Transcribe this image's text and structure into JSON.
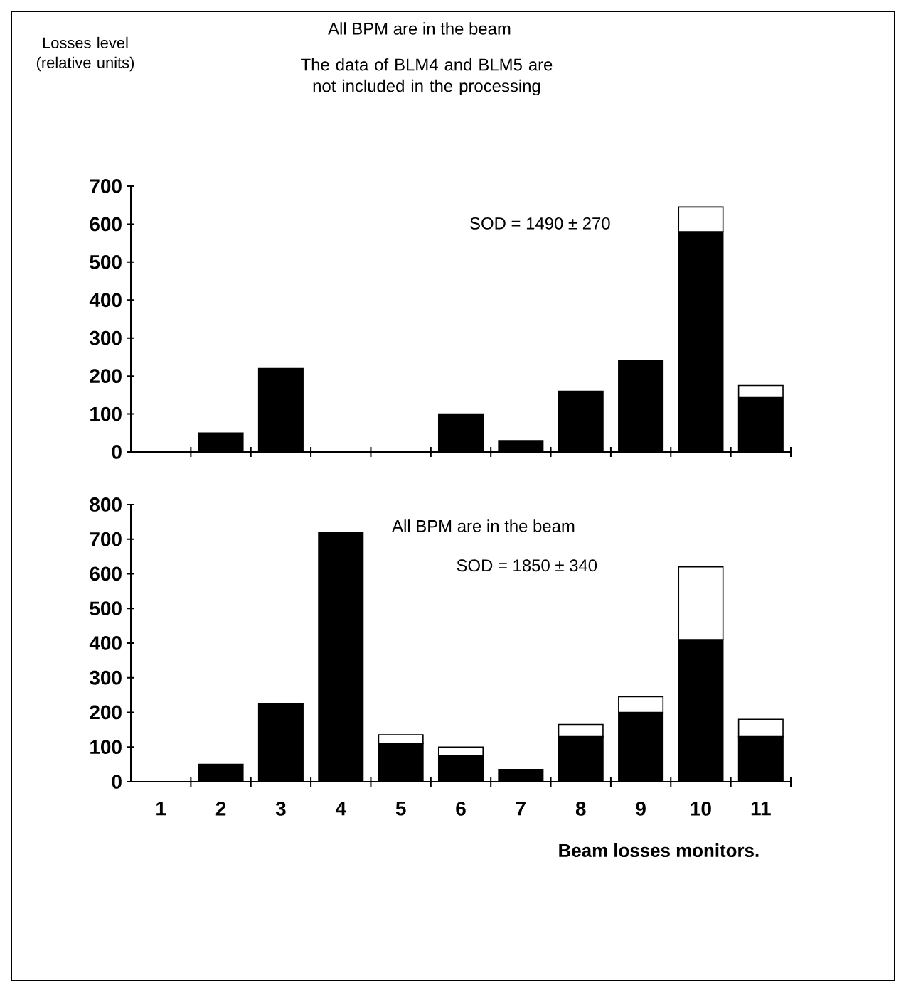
{
  "chart_data": [
    {
      "type": "bar",
      "stacked": true,
      "title": "All BPM are in the beam",
      "subtitle": "The data of BLM4 and BLM5 are not included in the processing",
      "ylabel": "Losses level (relative units)",
      "categories": [
        "1",
        "2",
        "3",
        "4",
        "5",
        "6",
        "7",
        "8",
        "9",
        "10",
        "11"
      ],
      "series": [
        {
          "color": "#000000",
          "values": [
            0,
            50,
            220,
            null,
            null,
            100,
            30,
            160,
            240,
            580,
            145
          ]
        },
        {
          "color": "#ffffff",
          "values": [
            null,
            null,
            null,
            null,
            null,
            null,
            null,
            null,
            null,
            65,
            30
          ]
        }
      ],
      "ylim": [
        0,
        700
      ],
      "yticks": [
        0,
        100,
        200,
        300,
        400,
        500,
        600,
        700
      ],
      "annotations": [
        "SOD = 1490 ± 270"
      ],
      "tick_labels": "y"
    },
    {
      "type": "bar",
      "stacked": true,
      "title": "All BPM are in the beam",
      "xlabel": "Beam losses monitors.",
      "categories": [
        "1",
        "2",
        "3",
        "4",
        "5",
        "6",
        "7",
        "8",
        "9",
        "10",
        "11"
      ],
      "series": [
        {
          "color": "#000000",
          "values": [
            0,
            50,
            225,
            720,
            110,
            75,
            35,
            130,
            200,
            410,
            130
          ]
        },
        {
          "color": "#ffffff",
          "values": [
            null,
            null,
            null,
            null,
            25,
            25,
            null,
            35,
            45,
            210,
            50
          ]
        }
      ],
      "ylim": [
        0,
        800
      ],
      "yticks": [
        0,
        100,
        200,
        300,
        400,
        500,
        600,
        700,
        800
      ],
      "annotations": [
        "SOD = 1850 ± 340"
      ]
    }
  ]
}
